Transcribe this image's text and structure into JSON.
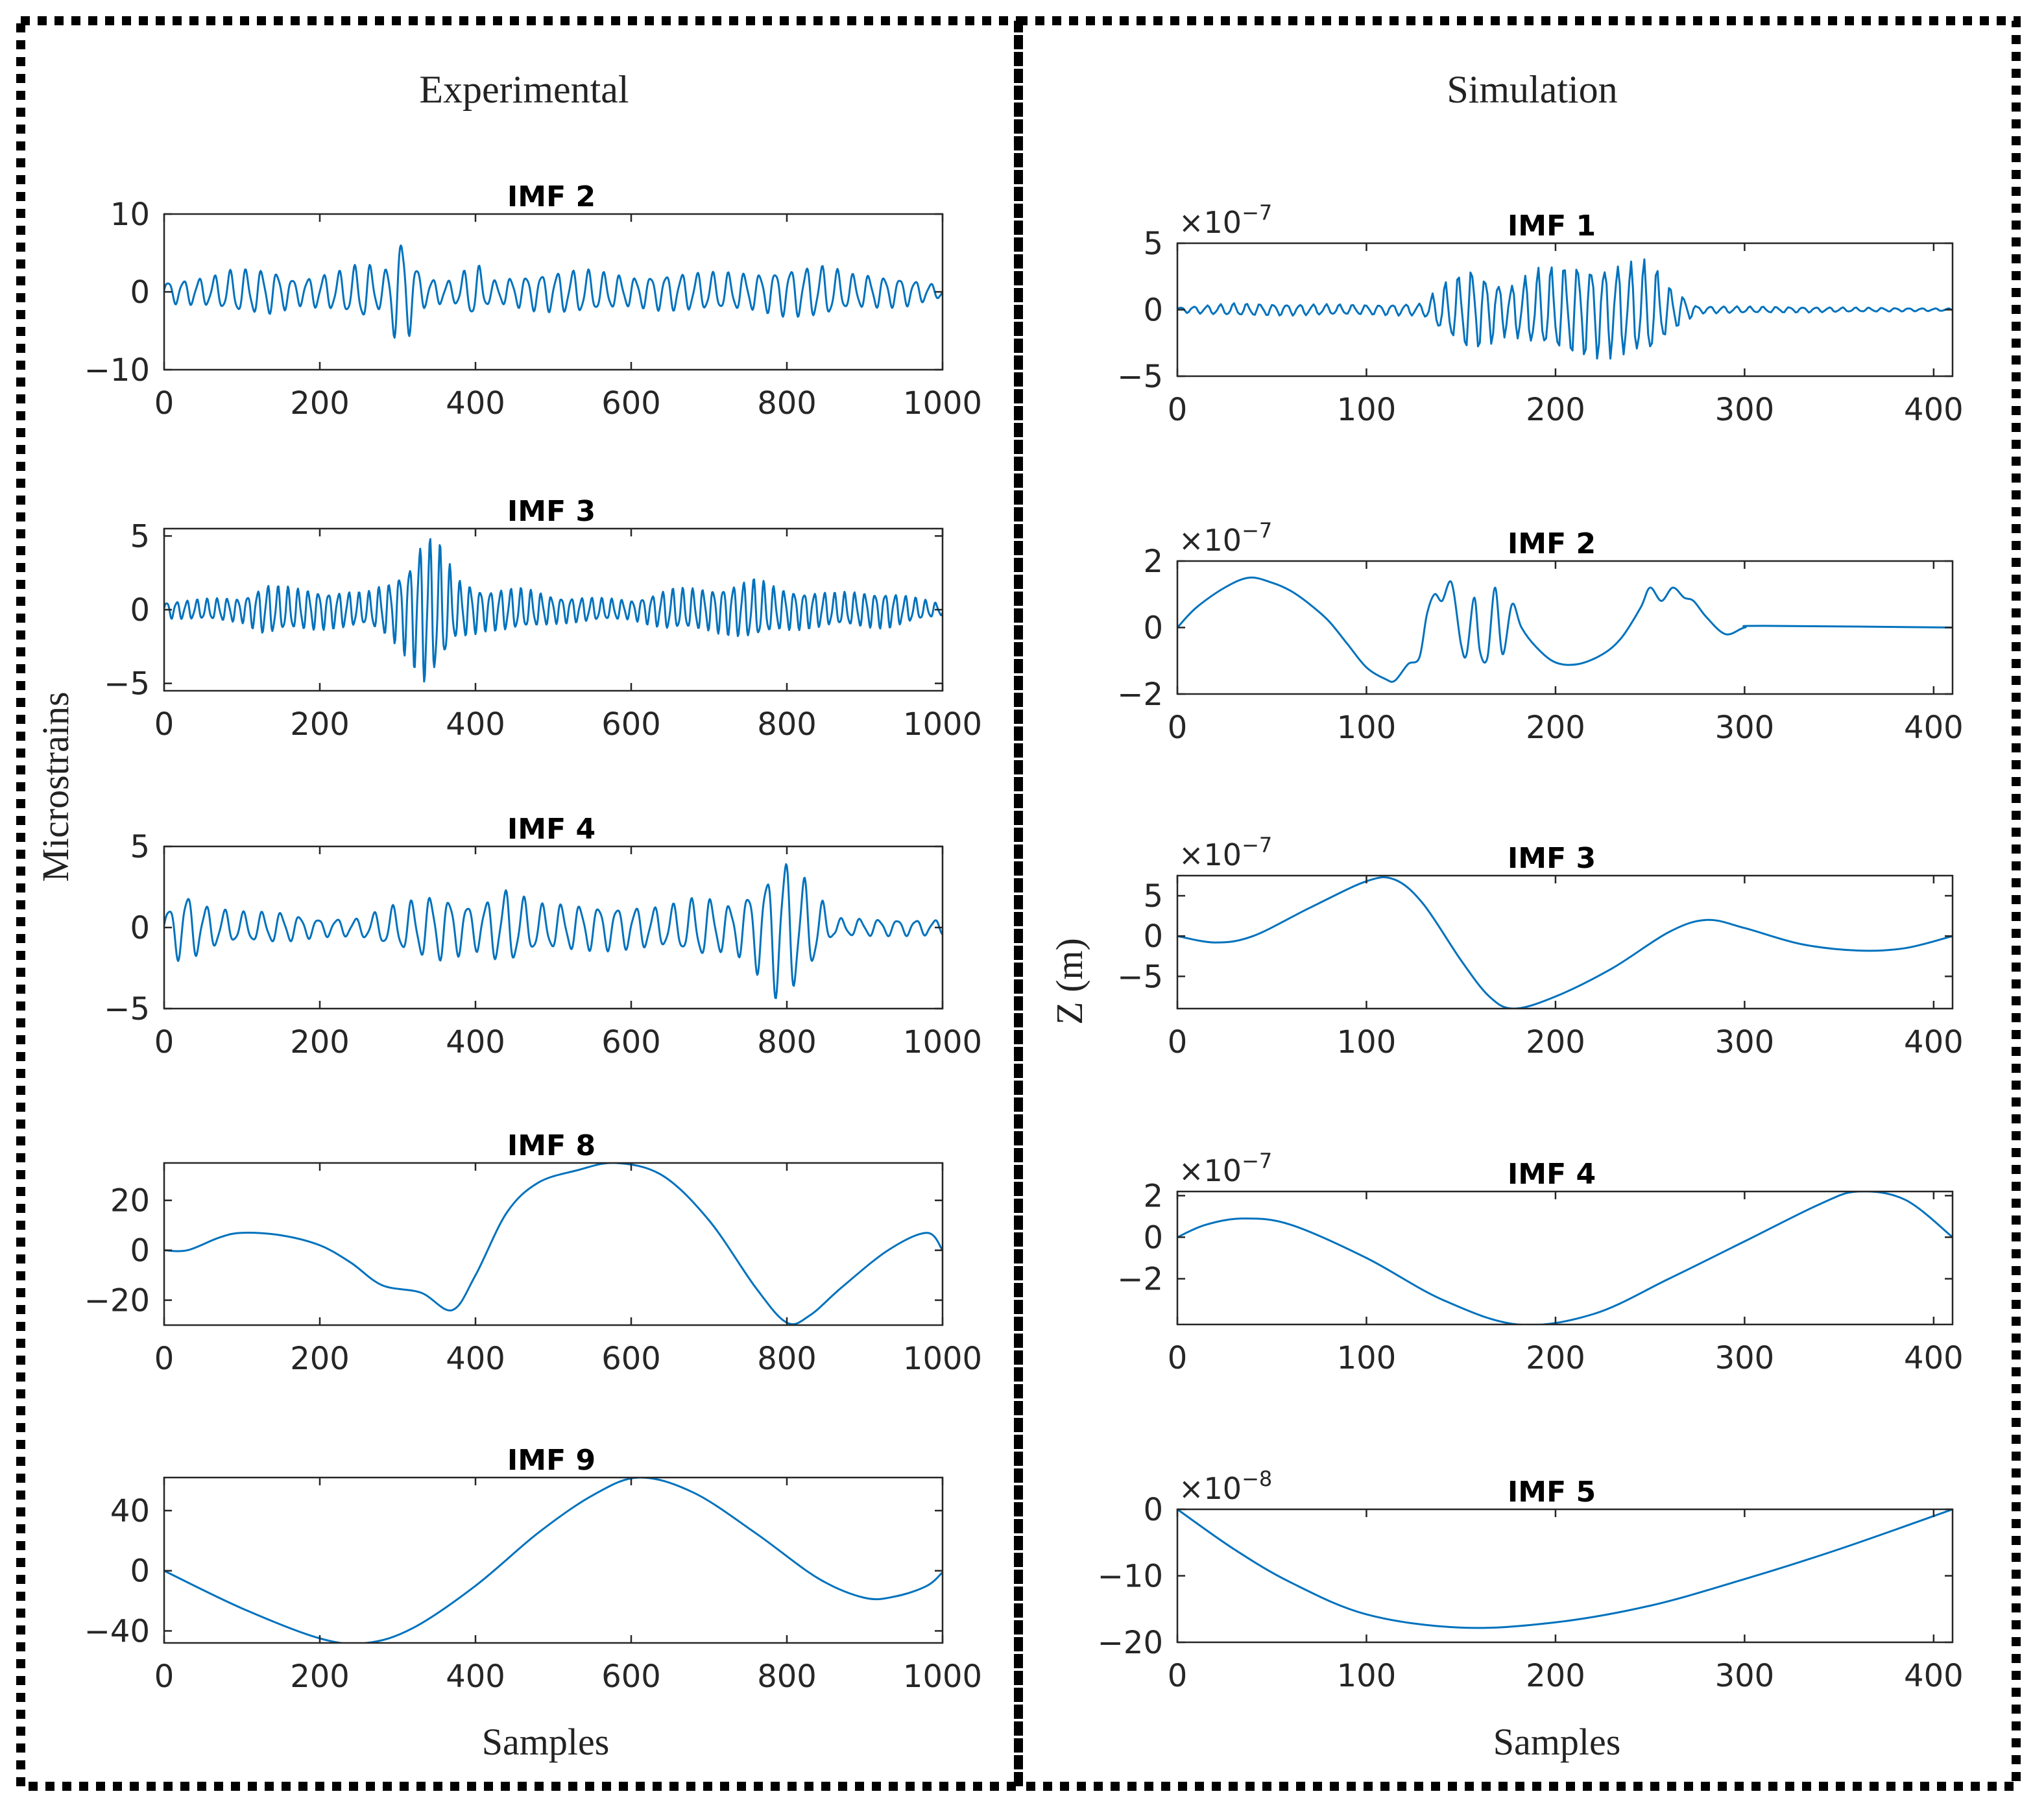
{
  "figure": {
    "left_title": "Experimental",
    "right_title": "Simulation",
    "left_ylabel": "Microstrains",
    "right_ylabel": "Z (m)",
    "xlabel": "Samples",
    "line_color": "#0072BD"
  },
  "chart_data": [
    {
      "type": "line",
      "panel": "experimental",
      "title": "IMF 2",
      "xlim": [
        0,
        1000
      ],
      "ylim": [
        -10,
        10
      ],
      "xticks": [
        "0",
        "200",
        "400",
        "600",
        "800",
        "1000"
      ],
      "yticks": [
        10,
        0,
        -10
      ],
      "ytick_labels": [
        "10",
        "0",
        "−10"
      ],
      "exponent": null,
      "signal": {
        "n": 1000,
        "period": 20,
        "envelope": [
          [
            0,
            1.5
          ],
          [
            60,
            2
          ],
          [
            90,
            3
          ],
          [
            140,
            3
          ],
          [
            170,
            1.8
          ],
          [
            220,
            2.6
          ],
          [
            260,
            4
          ],
          [
            280,
            2.2
          ],
          [
            295,
            6
          ],
          [
            305,
            8
          ],
          [
            318,
            5
          ],
          [
            335,
            2
          ],
          [
            370,
            1.5
          ],
          [
            400,
            4
          ],
          [
            420,
            1.5
          ],
          [
            480,
            2.6
          ],
          [
            540,
            3
          ],
          [
            600,
            2
          ],
          [
            640,
            2.5
          ],
          [
            700,
            2.6
          ],
          [
            760,
            2.5
          ],
          [
            800,
            3.3
          ],
          [
            850,
            3.5
          ],
          [
            880,
            2.4
          ],
          [
            950,
            2
          ],
          [
            1000,
            0.8
          ]
        ]
      }
    },
    {
      "type": "line",
      "panel": "experimental",
      "title": "IMF 3",
      "xlim": [
        0,
        1000
      ],
      "ylim": [
        -5.5,
        5.5
      ],
      "xticks": [
        "0",
        "200",
        "400",
        "600",
        "800",
        "1000"
      ],
      "yticks": [
        5,
        0,
        -5
      ],
      "ytick_labels": [
        "5",
        "0",
        "−5"
      ],
      "exponent": null,
      "signal": {
        "n": 1000,
        "period": 13,
        "envelope": [
          [
            0,
            0.6
          ],
          [
            100,
            0.9
          ],
          [
            130,
            1.8
          ],
          [
            170,
            1.5
          ],
          [
            260,
            1.2
          ],
          [
            290,
            2
          ],
          [
            315,
            3.5
          ],
          [
            335,
            5.5
          ],
          [
            355,
            4.5
          ],
          [
            375,
            2.2
          ],
          [
            410,
            1.5
          ],
          [
            460,
            1.5
          ],
          [
            500,
            1
          ],
          [
            600,
            0.7
          ],
          [
            650,
            1.5
          ],
          [
            700,
            1.5
          ],
          [
            760,
            2.2
          ],
          [
            790,
            1.5
          ],
          [
            860,
            1.2
          ],
          [
            930,
            1.3
          ],
          [
            1000,
            0.4
          ]
        ]
      }
    },
    {
      "type": "line",
      "panel": "experimental",
      "title": "IMF 4",
      "xlim": [
        0,
        1000
      ],
      "ylim": [
        -5,
        5
      ],
      "xticks": [
        "0",
        "200",
        "400",
        "600",
        "800",
        "1000"
      ],
      "yticks": [
        5,
        0,
        -5
      ],
      "ytick_labels": [
        "5",
        "0",
        "−5"
      ],
      "exponent": null,
      "signal": {
        "n": 1000,
        "period": 24,
        "envelope": [
          [
            0,
            1
          ],
          [
            25,
            2.5
          ],
          [
            50,
            1.5
          ],
          [
            90,
            1
          ],
          [
            150,
            1
          ],
          [
            200,
            0.6
          ],
          [
            250,
            0.6
          ],
          [
            300,
            1.5
          ],
          [
            350,
            2.2
          ],
          [
            400,
            1.5
          ],
          [
            440,
            2.5
          ],
          [
            480,
            1.5
          ],
          [
            560,
            1.5
          ],
          [
            640,
            1.3
          ],
          [
            690,
            2
          ],
          [
            730,
            1.5
          ],
          [
            775,
            3.5
          ],
          [
            790,
            5
          ],
          [
            810,
            4
          ],
          [
            835,
            2.5
          ],
          [
            860,
            0.6
          ],
          [
            1000,
            0.5
          ]
        ]
      }
    },
    {
      "type": "line",
      "panel": "experimental",
      "title": "IMF 8",
      "xlim": [
        0,
        1000
      ],
      "ylim": [
        -30,
        35
      ],
      "xticks": [
        "0",
        "200",
        "400",
        "600",
        "800",
        "1000"
      ],
      "yticks": [
        20,
        0,
        -20
      ],
      "ytick_labels": [
        "20",
        "0",
        "−20"
      ],
      "exponent": null,
      "points": [
        [
          0,
          0
        ],
        [
          30,
          0
        ],
        [
          70,
          5
        ],
        [
          100,
          7
        ],
        [
          150,
          6
        ],
        [
          200,
          2
        ],
        [
          240,
          -5
        ],
        [
          280,
          -14
        ],
        [
          330,
          -17
        ],
        [
          370,
          -24
        ],
        [
          400,
          -10
        ],
        [
          440,
          15
        ],
        [
          480,
          27
        ],
        [
          530,
          32
        ],
        [
          580,
          35
        ],
        [
          640,
          30
        ],
        [
          700,
          12
        ],
        [
          760,
          -15
        ],
        [
          800,
          -29
        ],
        [
          830,
          -26
        ],
        [
          870,
          -15
        ],
        [
          930,
          0
        ],
        [
          980,
          7
        ],
        [
          1000,
          0
        ]
      ]
    },
    {
      "type": "line",
      "panel": "experimental",
      "title": "IMF 9",
      "xlim": [
        0,
        1000
      ],
      "ylim": [
        -48,
        62
      ],
      "xticks": [
        "0",
        "200",
        "400",
        "600",
        "800",
        "1000"
      ],
      "yticks": [
        40,
        0,
        -40
      ],
      "ytick_labels": [
        "40",
        "0",
        "−40"
      ],
      "exponent": null,
      "points": [
        [
          0,
          0
        ],
        [
          100,
          -25
        ],
        [
          200,
          -45
        ],
        [
          260,
          -48
        ],
        [
          320,
          -38
        ],
        [
          400,
          -10
        ],
        [
          480,
          25
        ],
        [
          550,
          50
        ],
        [
          610,
          62
        ],
        [
          680,
          52
        ],
        [
          760,
          25
        ],
        [
          840,
          -5
        ],
        [
          900,
          -18
        ],
        [
          940,
          -17
        ],
        [
          980,
          -10
        ],
        [
          1000,
          -1
        ]
      ]
    },
    {
      "type": "line",
      "panel": "simulation",
      "title": "IMF 1",
      "xlim": [
        0,
        410
      ],
      "ylim": [
        -5,
        5
      ],
      "xticks": [
        "0",
        "100",
        "200",
        "300",
        "400"
      ],
      "yticks": [
        5,
        0,
        -5
      ],
      "ytick_labels": [
        "5",
        "0",
        "−5"
      ],
      "exponent": "−7",
      "signal": {
        "n": 410,
        "period": 7,
        "envelope": [
          [
            0,
            0.2
          ],
          [
            30,
            0.5
          ],
          [
            100,
            0.4
          ],
          [
            130,
            0.5
          ],
          [
            140,
            2
          ],
          [
            155,
            3.5
          ],
          [
            175,
            2
          ],
          [
            190,
            3.2
          ],
          [
            210,
            3.8
          ],
          [
            245,
            3.8
          ],
          [
            250,
            4
          ],
          [
            260,
            2
          ],
          [
            275,
            0.3
          ],
          [
            410,
            0.1
          ]
        ]
      }
    },
    {
      "type": "line",
      "panel": "simulation",
      "title": "IMF 2",
      "xlim": [
        0,
        410
      ],
      "ylim": [
        -2,
        2
      ],
      "xticks": [
        "0",
        "100",
        "200",
        "300",
        "400"
      ],
      "yticks": [
        2,
        0,
        -2
      ],
      "ytick_labels": [
        "2",
        "0",
        "−2"
      ],
      "exponent": "−7",
      "points": [
        [
          0,
          0
        ],
        [
          10,
          0.6
        ],
        [
          25,
          1.2
        ],
        [
          38,
          1.5
        ],
        [
          50,
          1.35
        ],
        [
          60,
          1.1
        ],
        [
          70,
          0.7
        ],
        [
          80,
          0.2
        ],
        [
          90,
          -0.5
        ],
        [
          100,
          -1.2
        ],
        [
          110,
          -1.55
        ],
        [
          115,
          -1.6
        ],
        [
          122,
          -1.1
        ],
        [
          128,
          -0.9
        ],
        [
          132,
          0.4
        ],
        [
          136,
          1
        ],
        [
          140,
          0.8
        ],
        [
          145,
          1.35
        ],
        [
          150,
          -0.5
        ],
        [
          153,
          -0.8
        ],
        [
          157,
          0.9
        ],
        [
          160,
          -0.7
        ],
        [
          164,
          -0.9
        ],
        [
          168,
          1.2
        ],
        [
          172,
          -0.8
        ],
        [
          177,
          0.7
        ],
        [
          182,
          0
        ],
        [
          190,
          -0.6
        ],
        [
          200,
          -1.05
        ],
        [
          212,
          -1.1
        ],
        [
          225,
          -0.8
        ],
        [
          235,
          -0.3
        ],
        [
          245,
          0.6
        ],
        [
          250,
          1.2
        ],
        [
          256,
          0.8
        ],
        [
          262,
          1.2
        ],
        [
          268,
          0.9
        ],
        [
          273,
          0.8
        ],
        [
          280,
          0.3
        ],
        [
          290,
          -0.2
        ],
        [
          300,
          0
        ],
        [
          310,
          0.05
        ],
        [
          410,
          0
        ]
      ]
    },
    {
      "type": "line",
      "panel": "simulation",
      "title": "IMF 3",
      "xlim": [
        0,
        410
      ],
      "ylim": [
        -9,
        7.5
      ],
      "xticks": [
        "0",
        "100",
        "200",
        "300",
        "400"
      ],
      "yticks": [
        5,
        0,
        -5
      ],
      "ytick_labels": [
        "5",
        "0",
        "−5"
      ],
      "exponent": "−7",
      "points": [
        [
          0,
          0
        ],
        [
          20,
          -0.8
        ],
        [
          40,
          0
        ],
        [
          70,
          3.5
        ],
        [
          100,
          6.8
        ],
        [
          115,
          7
        ],
        [
          130,
          4
        ],
        [
          150,
          -3
        ],
        [
          165,
          -7.5
        ],
        [
          178,
          -9
        ],
        [
          200,
          -7.5
        ],
        [
          230,
          -4
        ],
        [
          260,
          0.5
        ],
        [
          280,
          2
        ],
        [
          300,
          1
        ],
        [
          330,
          -1
        ],
        [
          360,
          -1.8
        ],
        [
          385,
          -1.5
        ],
        [
          410,
          0
        ]
      ]
    },
    {
      "type": "line",
      "panel": "simulation",
      "title": "IMF 4",
      "xlim": [
        0,
        410
      ],
      "ylim": [
        -4.2,
        2.2
      ],
      "xticks": [
        "0",
        "100",
        "200",
        "300",
        "400"
      ],
      "yticks": [
        2,
        0,
        -2
      ],
      "ytick_labels": [
        "2",
        "0",
        "−2"
      ],
      "exponent": "−7",
      "points": [
        [
          0,
          0
        ],
        [
          15,
          0.6
        ],
        [
          35,
          0.9
        ],
        [
          60,
          0.6
        ],
        [
          100,
          -1
        ],
        [
          140,
          -3
        ],
        [
          180,
          -4.2
        ],
        [
          220,
          -3.7
        ],
        [
          260,
          -2
        ],
        [
          300,
          -0.2
        ],
        [
          340,
          1.6
        ],
        [
          360,
          2.2
        ],
        [
          385,
          1.8
        ],
        [
          410,
          0
        ]
      ]
    },
    {
      "type": "line",
      "panel": "simulation",
      "title": "IMF 5",
      "xlim": [
        0,
        410
      ],
      "ylim": [
        -20,
        0
      ],
      "xticks": [
        "0",
        "100",
        "200",
        "300",
        "400"
      ],
      "yticks": [
        0,
        -10,
        -20
      ],
      "ytick_labels": [
        "0",
        "−10",
        "−20"
      ],
      "exponent": "−8",
      "points": [
        [
          0,
          0
        ],
        [
          30,
          -6
        ],
        [
          60,
          -11
        ],
        [
          100,
          -15.8
        ],
        [
          150,
          -17.8
        ],
        [
          200,
          -17
        ],
        [
          250,
          -14.5
        ],
        [
          300,
          -10.5
        ],
        [
          350,
          -6
        ],
        [
          410,
          0
        ]
      ]
    }
  ]
}
